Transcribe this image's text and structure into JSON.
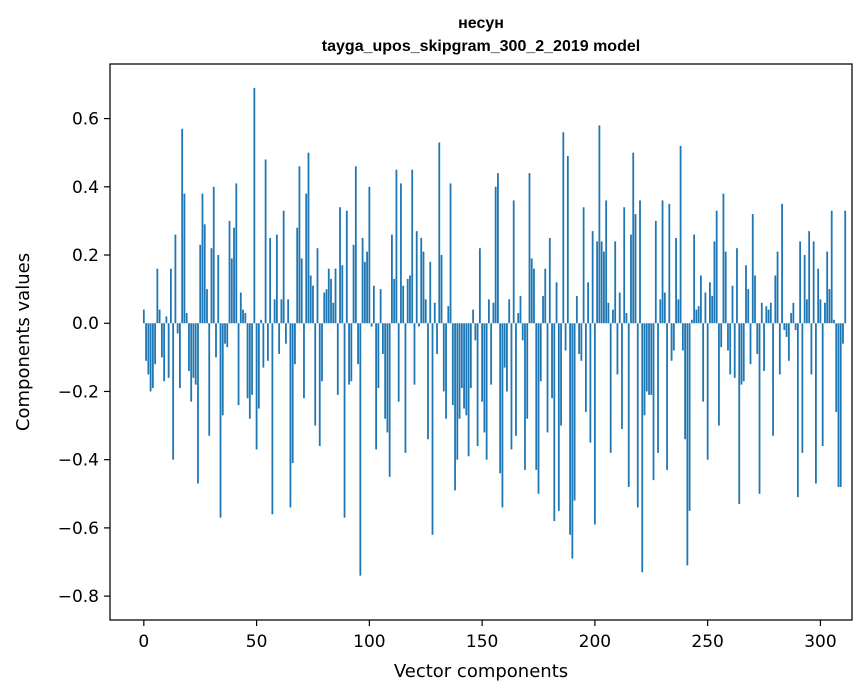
{
  "chart_data": {
    "type": "bar",
    "title": "несун",
    "subtitle": "tayga_upos_skipgram_300_2_2019 model",
    "xlabel": "Vector components",
    "ylabel": "Components values",
    "xlim": [
      -15,
      314
    ],
    "ylim": [
      -0.87,
      0.76
    ],
    "x_ticks": [
      0,
      50,
      100,
      150,
      200,
      250,
      300
    ],
    "x_tick_labels": [
      "0",
      "50",
      "100",
      "150",
      "200",
      "250",
      "300"
    ],
    "y_ticks": [
      0.6,
      0.4,
      0.2,
      0.0,
      -0.2,
      -0.4,
      -0.6,
      -0.8
    ],
    "y_tick_labels": [
      "0.6",
      "0.4",
      "0.2",
      "0.0",
      "−0.2",
      "−0.4",
      "−0.6",
      "−0.8"
    ],
    "bar_color": "#1f77b4",
    "grid": false,
    "values": [
      0.04,
      -0.11,
      -0.15,
      -0.2,
      -0.19,
      -0.12,
      0.16,
      0.04,
      -0.1,
      -0.17,
      0.02,
      -0.16,
      0.16,
      -0.4,
      0.26,
      -0.03,
      -0.19,
      0.57,
      0.38,
      0.03,
      -0.14,
      -0.23,
      -0.16,
      -0.18,
      -0.47,
      0.23,
      0.38,
      0.29,
      0.1,
      -0.33,
      0.22,
      0.4,
      -0.1,
      0.2,
      -0.57,
      -0.27,
      -0.06,
      -0.07,
      0.3,
      0.19,
      0.28,
      0.41,
      -0.24,
      0.09,
      0.04,
      0.03,
      -0.22,
      -0.28,
      -0.21,
      0.69,
      -0.37,
      -0.25,
      0.01,
      -0.13,
      0.48,
      -0.11,
      0.25,
      -0.56,
      0.07,
      0.26,
      -0.09,
      0.07,
      0.33,
      -0.06,
      0.07,
      -0.54,
      -0.41,
      -0.12,
      0.28,
      0.46,
      0.19,
      -0.22,
      0.38,
      0.5,
      0.14,
      0.11,
      -0.3,
      0.22,
      -0.36,
      -0.17,
      0.09,
      0.1,
      0.16,
      0.13,
      0.06,
      0.16,
      -0.21,
      0.34,
      0.17,
      -0.57,
      0.33,
      -0.18,
      -0.17,
      0.23,
      0.46,
      -0.12,
      -0.74,
      0.25,
      0.18,
      0.21,
      0.4,
      -0.01,
      0.11,
      -0.37,
      -0.19,
      0.1,
      -0.09,
      -0.28,
      -0.32,
      -0.45,
      0.26,
      0.13,
      0.45,
      -0.23,
      0.41,
      0.11,
      -0.38,
      0.13,
      0.14,
      0.45,
      -0.18,
      0.27,
      -0.01,
      0.25,
      0.21,
      0.07,
      -0.34,
      0.18,
      -0.62,
      0.06,
      -0.09,
      0.53,
      0.2,
      -0.2,
      -0.28,
      0.05,
      0.41,
      -0.24,
      -0.49,
      -0.4,
      -0.28,
      -0.19,
      -0.25,
      -0.27,
      -0.39,
      -0.19,
      0.04,
      -0.05,
      -0.36,
      0.22,
      -0.23,
      -0.32,
      -0.4,
      0.07,
      -0.18,
      0.06,
      0.4,
      0.44,
      -0.44,
      -0.54,
      -0.13,
      -0.2,
      0.07,
      -0.37,
      0.36,
      -0.33,
      0.03,
      0.08,
      -0.05,
      -0.43,
      -0.28,
      0.44,
      0.19,
      0.16,
      -0.43,
      -0.5,
      -0.17,
      0.08,
      0.16,
      -0.32,
      0.25,
      -0.22,
      -0.58,
      0.12,
      -0.55,
      -0.3,
      0.56,
      -0.08,
      0.49,
      -0.62,
      -0.69,
      -0.52,
      0.08,
      -0.09,
      -0.11,
      0.34,
      -0.26,
      0.12,
      -0.35,
      0.27,
      -0.59,
      0.24,
      0.58,
      0.24,
      0.21,
      0.36,
      0.06,
      -0.38,
      0.04,
      0.24,
      -0.15,
      0.09,
      -0.31,
      0.34,
      0.03,
      -0.48,
      0.26,
      0.5,
      0.32,
      -0.54,
      0.36,
      -0.73,
      -0.27,
      -0.2,
      -0.21,
      -0.21,
      -0.46,
      0.3,
      -0.38,
      0.07,
      0.36,
      0.09,
      -0.43,
      0.35,
      -0.11,
      -0.08,
      0.25,
      0.07,
      0.52,
      -0.08,
      -0.34,
      -0.71,
      -0.55,
      0.01,
      0.26,
      0.04,
      0.05,
      0.14,
      -0.23,
      0.09,
      -0.4,
      0.12,
      0.08,
      0.24,
      0.33,
      -0.3,
      -0.07,
      0.38,
      0.21,
      -0.08,
      -0.15,
      0.11,
      -0.16,
      0.22,
      -0.53,
      -0.18,
      -0.17,
      0.17,
      0.1,
      -0.12,
      0.32,
      0.14,
      -0.09,
      -0.5,
      0.06,
      -0.14,
      0.05,
      0.04,
      0.06,
      -0.33,
      0.14,
      0.21,
      -0.15,
      0.35,
      -0.02,
      -0.04,
      -0.11,
      0.03,
      0.06,
      -0.02,
      -0.51,
      0.24,
      -0.38,
      0.2,
      0.07,
      0.27,
      -0.15,
      0.24,
      -0.47,
      0.16,
      0.07,
      -0.36,
      0.06,
      0.21,
      0.1,
      0.33,
      0.01,
      -0.26,
      -0.48,
      -0.48,
      -0.06,
      0.33
    ]
  }
}
